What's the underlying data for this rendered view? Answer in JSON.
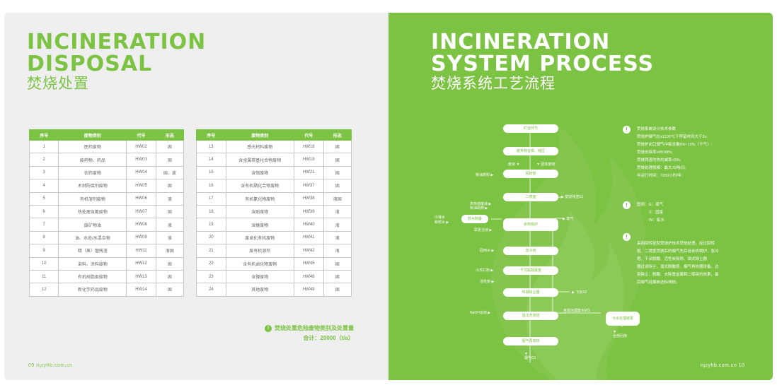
{
  "left_page": {
    "title_en_line1": "INCINERATION",
    "title_en_line2": "DISPOSAL",
    "title_cn": "焚烧处置",
    "table_headers": [
      "序号",
      "废物类别",
      "代号",
      "形态"
    ],
    "table_left": [
      [
        "1",
        "医药废物",
        "HW02",
        "固"
      ],
      [
        "2",
        "废药物、药品",
        "HW03",
        "固"
      ],
      [
        "3",
        "农药废物",
        "HW04",
        "固、液"
      ],
      [
        "4",
        "木材防腐剂废物",
        "HW05",
        "固"
      ],
      [
        "5",
        "有机溶剂废物",
        "HW06",
        "液"
      ],
      [
        "6",
        "热处理含氰废物",
        "HW07",
        "固"
      ],
      [
        "7",
        "废矿物油",
        "HW08",
        "液"
      ],
      [
        "8",
        "油、水烃/水混合物",
        "HW09",
        "液"
      ],
      [
        "9",
        "精（蒸）馏残渣",
        "HW11",
        "液固"
      ],
      [
        "10",
        "染料、涂料废物",
        "HW12",
        "固"
      ],
      [
        "11",
        "有机树脂类废物",
        "HW13",
        "固"
      ],
      [
        "12",
        "新化学药品废物",
        "HW14",
        "固"
      ]
    ],
    "table_right": [
      [
        "13",
        "感光材料废物",
        "HW16",
        "固"
      ],
      [
        "14",
        "含金属羰基化合物废物",
        "HW19",
        "固"
      ],
      [
        "15",
        "含铬废物",
        "HW21",
        "固"
      ],
      [
        "16",
        "含有机磷化合物废物",
        "HW37",
        "固"
      ],
      [
        "17",
        "有机氰化物废物",
        "HW38",
        "液固"
      ],
      [
        "18",
        "含酚废物",
        "HW39",
        "液"
      ],
      [
        "19",
        "含醚废物",
        "HW40",
        "液"
      ],
      [
        "20",
        "废卤化有机废物",
        "HW41",
        "液"
      ],
      [
        "21",
        "废有机溶剂",
        "HW42",
        "液"
      ],
      [
        "22",
        "含有机卤化物废物",
        "HW45",
        "固"
      ],
      [
        "23",
        "含镍废物",
        "HW46",
        "固"
      ],
      [
        "24",
        "其他废物",
        "HW49",
        "固"
      ]
    ],
    "note_line1": "焚烧处置危险废物类别及处置量",
    "note_line2": "合计：20000（t/a）",
    "page_number": "09  njzyhb.com.cn"
  },
  "right_page": {
    "title_en_line1": "INCINERATION",
    "title_en_line2": "SYSTEM PROCESS",
    "title_cn": "焚烧系统工艺流程",
    "page_number": "njzyhb.com.cn  10",
    "flow_boxes": {
      "b1": "贮运环节",
      "b2": "废弃物仓库、储区",
      "b3": "回转窑",
      "b4": "二燃室",
      "b5": "余热锅炉",
      "b6": "急冷塔",
      "b7": "干式脱酸装置",
      "b8": "布袋除尘器",
      "b9": "湿法洗涤塔",
      "b10": "烟气再加热",
      "soft": "软水制备",
      "water": "污水处理装置"
    },
    "flow_labels": {
      "liquid": "废液",
      "solid": "固体废物",
      "fuel": "柴油燃料",
      "slag": "焚烧残渣S1",
      "air1": "高热值废液",
      "air2": "柴油助燃",
      "cold": "冷凝水",
      "fresh": "新鲜水",
      "urea": "尿素溶液",
      "steam": "蒸气",
      "recirc": "回用水",
      "lime": "小苏打粉",
      "carbon": "活性炭",
      "fly": "飞灰S2",
      "naoh": "NaOH溶液",
      "wastewater": "含盐治理废水W3",
      "reuse": "全部回用",
      "gas": "烟气G1"
    },
    "info1": [
      "焚烧系统设计技术参数",
      "焚烧炉烟气在≥1100℃下停留时间大于2s;",
      "焚烧炉出口烟气中氧含量6%~10%（干气）;",
      "焚烧去除率≥99.99%;",
      "焚烧残渣的热灼减率<5%;",
      "焚烧处理规模：最大70吨/日;",
      "年运行时间：7200小时/年;"
    ],
    "info2": [
      "图例：G：废气",
      "S：固废",
      "W：废水"
    ],
    "info3": [
      "采用回转窑型焚烧炉技术焚烧处理，经过回转",
      "窑、二燃室焚烧后的烟气先后经余热锅炉、急冷",
      "塔、干法脱酸、活性炭吸附、袋式除尘器",
      "器过滤除尘、湿式脱酸塔、烟气再热器设备，达",
      "到除尘、脱酸、去除重金属和二噁英的效果，最",
      "后烟气经烟囱达标排放。"
    ]
  }
}
